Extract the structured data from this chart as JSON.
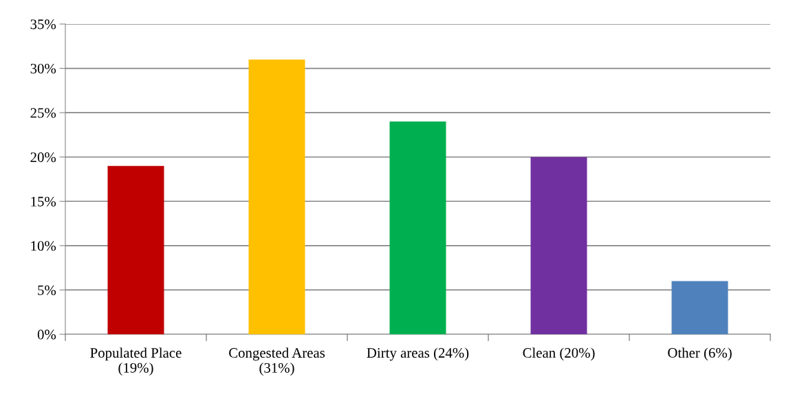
{
  "chart_data": {
    "type": "bar",
    "categories": [
      "Populated Place\n(19%)",
      "Congested Areas\n(31%)",
      "Dirty areas (24%)",
      "Clean (20%)",
      "Other (6%)"
    ],
    "values": [
      19,
      31,
      24,
      20,
      6
    ],
    "colors": [
      "#c00000",
      "#ffc000",
      "#00b050",
      "#7030a0",
      "#4f81bd"
    ],
    "ylim": [
      0,
      35
    ],
    "yticks": [
      {
        "value": 0,
        "label": "0%"
      },
      {
        "value": 5,
        "label": "5%"
      },
      {
        "value": 10,
        "label": "10%"
      },
      {
        "value": 15,
        "label": "15%"
      },
      {
        "value": 20,
        "label": "20%"
      },
      {
        "value": 25,
        "label": "25%"
      },
      {
        "value": 30,
        "label": "30%"
      },
      {
        "value": 35,
        "label": "35%"
      }
    ],
    "grid": "y"
  }
}
